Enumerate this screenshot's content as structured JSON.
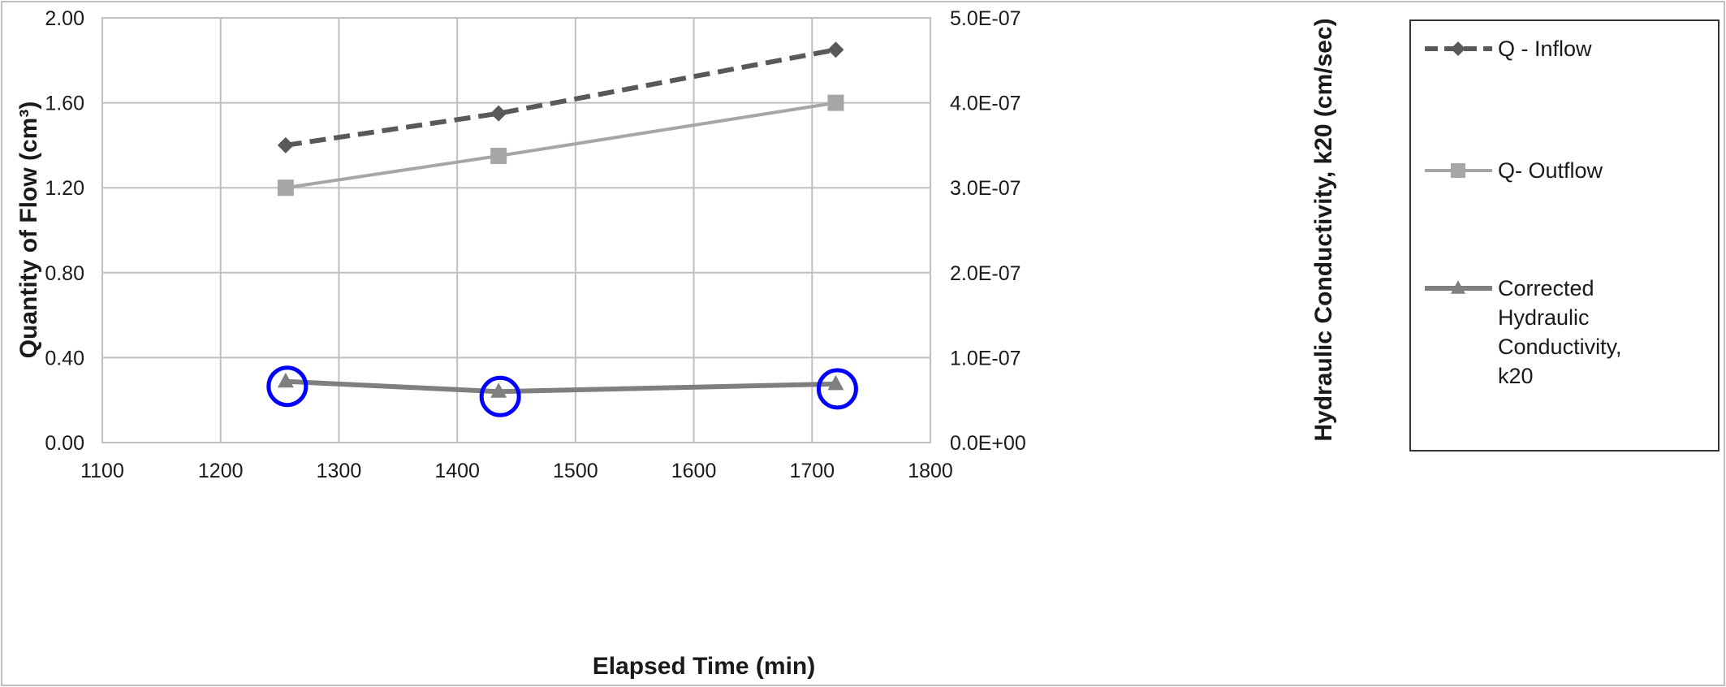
{
  "chart_data": {
    "type": "line",
    "xlabel": "Elapsed Time (min)",
    "ylabel_left": "Quantity of Flow (cm³)",
    "ylabel_right": "Hydraulic Conductivity, k20  (cm/sec)",
    "xlim": [
      1100,
      1800
    ],
    "ylim_left": [
      0,
      2
    ],
    "ylim_right": [
      0,
      5e-07
    ],
    "x_ticks": [
      "1100",
      "1200",
      "1300",
      "1400",
      "1500",
      "1600",
      "1700",
      "1800"
    ],
    "y_left_ticks": [
      "0.00",
      "0.40",
      "0.80",
      "1.20",
      "1.60",
      "2.00"
    ],
    "y_right_ticks": [
      "0.0E+00",
      "1.0E-07",
      "2.0E-07",
      "3.0E-07",
      "4.0E-07",
      "5.0E-07"
    ],
    "grid": true,
    "legend_position": "right",
    "series": [
      {
        "name": "Q - Inflow",
        "axis": "left",
        "x": [
          1255,
          1435,
          1720
        ],
        "y": [
          1.4,
          1.55,
          1.85
        ],
        "color": "#595959",
        "marker": "diamond",
        "line": "dashed",
        "legend_lines": [
          "Q - Inflow"
        ]
      },
      {
        "name": "Q- Outflow",
        "axis": "left",
        "x": [
          1255,
          1435,
          1720
        ],
        "y": [
          1.2,
          1.35,
          1.6
        ],
        "color": "#a6a6a6",
        "marker": "square",
        "line": "solid",
        "legend_lines": [
          "Q- Outflow"
        ]
      },
      {
        "name": "Corrected Hydraulic Conductivity, k20",
        "axis": "right",
        "x": [
          1255,
          1435,
          1720
        ],
        "y": [
          7.2e-08,
          6e-08,
          6.9e-08
        ],
        "color": "#7f7f7f",
        "marker": "triangle",
        "line": "solid-thick",
        "legend_lines": [
          "Corrected",
          "Hydraulic",
          "Conductivity,",
          "k20"
        ]
      }
    ],
    "annotations": {
      "highlight_circles": {
        "series": 2,
        "points": [
          0,
          1,
          2
        ],
        "color": "#0000ff"
      }
    }
  }
}
